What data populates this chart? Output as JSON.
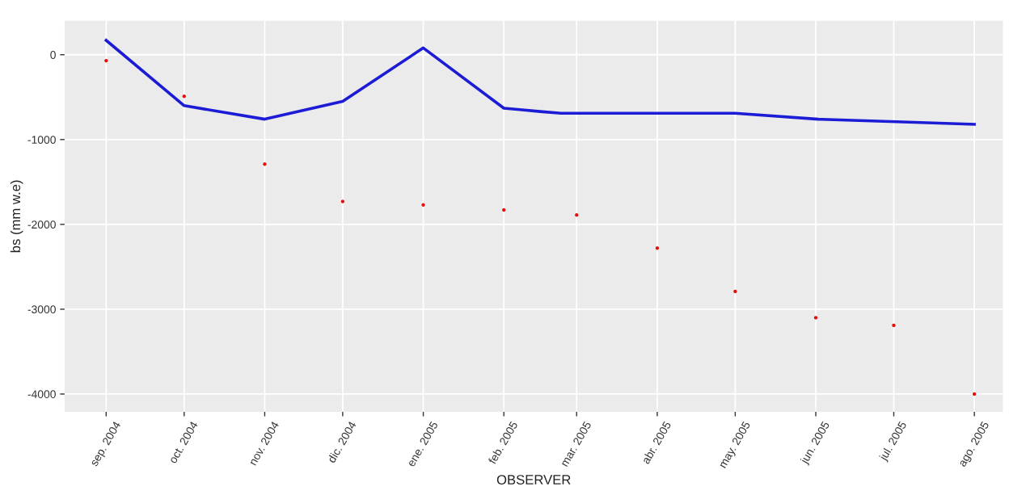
{
  "chart_data": {
    "type": "line",
    "xlabel": "OBSERVER",
    "ylabel": "bs (mm w.e)",
    "xlim": [
      "2004-08-16",
      "2005-08-12"
    ],
    "ylim": [
      -4210,
      400
    ],
    "xticks": [
      {
        "value": "2004-09-01",
        "label": "sep. 2004"
      },
      {
        "value": "2004-10-01",
        "label": "oct. 2004"
      },
      {
        "value": "2004-11-01",
        "label": "nov. 2004"
      },
      {
        "value": "2004-12-01",
        "label": "dic. 2004"
      },
      {
        "value": "2005-01-01",
        "label": "ene. 2005"
      },
      {
        "value": "2005-02-01",
        "label": "feb. 2005"
      },
      {
        "value": "2005-03-01",
        "label": "mar. 2005"
      },
      {
        "value": "2005-04-01",
        "label": "abr. 2005"
      },
      {
        "value": "2005-05-01",
        "label": "may. 2005"
      },
      {
        "value": "2005-06-01",
        "label": "jun. 2005"
      },
      {
        "value": "2005-07-01",
        "label": "jul. 2005"
      },
      {
        "value": "2005-08-01",
        "label": "ago. 2005"
      }
    ],
    "yticks": [
      -4000,
      -3000,
      -2000,
      -1000,
      0
    ],
    "grid": true,
    "series": [
      {
        "color": "#1c1cd6",
        "x": [
          "2004-09-01",
          "2004-10-01",
          "2004-11-01",
          "2004-12-01",
          "2005-01-01",
          "2005-02-01",
          "2005-02-08",
          "2005-02-15",
          "2005-02-23",
          "2005-05-01",
          "2005-06-02",
          "2005-07-02",
          "2005-08-01"
        ],
        "values": [
          170,
          -600,
          -760,
          -550,
          80,
          -630,
          -650,
          -670,
          -690,
          -690,
          -760,
          -790,
          -820
        ]
      },
      {
        "type": "scatter",
        "color": "#e01010",
        "x": [
          "2004-09-01",
          "2004-10-01",
          "2004-11-01",
          "2004-12-01",
          "2005-01-01",
          "2005-02-01",
          "2005-03-01",
          "2005-04-01",
          "2005-05-01",
          "2005-06-01",
          "2005-07-01",
          "2005-08-01"
        ],
        "values": [
          -70,
          -490,
          -1290,
          -1730,
          -1770,
          -1830,
          -1890,
          -2280,
          -2790,
          -3100,
          -3190,
          -4000
        ]
      }
    ]
  }
}
